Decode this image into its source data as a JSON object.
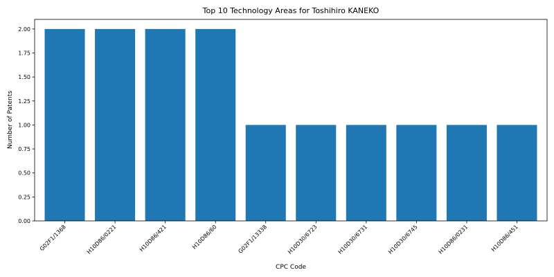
{
  "chart_data": {
    "type": "bar",
    "title": "Top 10 Technology Areas for Toshihiro KANEKO",
    "xlabel": "CPC Code",
    "ylabel": "Number of Patents",
    "categories": [
      "G02F1/1368",
      "H10D86/0221",
      "H10D86/421",
      "H10D86/60",
      "G02F1/13338",
      "H10D30/6723",
      "H10D30/6731",
      "H10D30/6745",
      "H10D86/0231",
      "H10D86/451"
    ],
    "values": [
      2,
      2,
      2,
      2,
      1,
      1,
      1,
      1,
      1,
      1
    ],
    "ylim": [
      0,
      2.1
    ],
    "yticks": [
      "0.00",
      "0.25",
      "0.50",
      "0.75",
      "1.00",
      "1.25",
      "1.50",
      "1.75",
      "2.00"
    ],
    "grid": false,
    "bar_color": "#1f77b4"
  }
}
